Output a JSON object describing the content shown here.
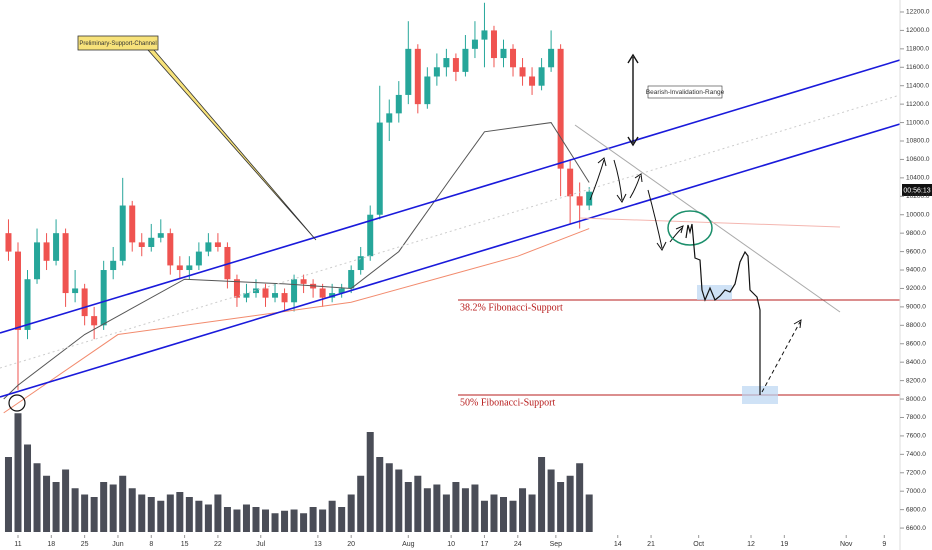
{
  "chart_data": {
    "type": "candlestick",
    "annotations": {
      "channel": "Preliminary-Support-Channel",
      "invalidation": "Bearish-Invalidation-Range",
      "fib382": "38.2% Fibonacci-Support",
      "fib50": "50% Fibonacci-Support",
      "countdown": "00:56:13"
    },
    "x": [
      -2,
      0,
      2,
      4,
      6,
      8,
      10,
      12,
      14,
      16,
      18,
      20,
      22,
      24,
      26,
      28,
      30,
      32,
      34,
      36,
      38,
      40,
      42,
      44,
      46,
      48,
      50,
      52,
      54,
      56,
      58,
      60,
      62,
      64,
      66,
      68,
      70,
      72,
      74,
      76,
      78,
      80,
      82,
      84,
      86,
      88,
      90,
      92,
      94,
      96,
      98,
      100,
      102,
      104,
      106,
      108,
      110,
      112,
      114,
      116,
      118,
      120
    ],
    "open": [
      9800,
      9600,
      8750,
      9300,
      9700,
      9500,
      9800,
      9150,
      9200,
      8900,
      8800,
      9400,
      9500,
      10100,
      9700,
      9650,
      9750,
      9800,
      9450,
      9400,
      9450,
      9600,
      9700,
      9650,
      9300,
      9100,
      9150,
      9200,
      9100,
      9150,
      9050,
      9300,
      9250,
      9200,
      9100,
      9150,
      9200,
      9400,
      9550,
      10000,
      11000,
      11100,
      11300,
      11800,
      11200,
      11500,
      11600,
      11700,
      11550,
      11800,
      11900,
      12000,
      11700,
      11800,
      11600,
      11500,
      11400,
      11600,
      11800,
      10500,
      10200,
      10100
    ],
    "high": [
      9950,
      9700,
      9400,
      9850,
      9800,
      9950,
      9850,
      9400,
      9250,
      9000,
      9500,
      9650,
      10400,
      10150,
      9800,
      9900,
      9950,
      9850,
      9550,
      9550,
      9700,
      9800,
      9800,
      9700,
      9350,
      9250,
      9300,
      9250,
      9250,
      9200,
      9350,
      9350,
      9300,
      9250,
      9250,
      9250,
      9450,
      9650,
      10100,
      11400,
      11250,
      11450,
      12100,
      11850,
      11600,
      11750,
      11800,
      11750,
      11950,
      12100,
      12300,
      12050,
      11900,
      11850,
      11700,
      11600,
      11700,
      12000,
      11850,
      10600,
      10350,
      10300
    ],
    "low": [
      9500,
      8100,
      8650,
      9250,
      9400,
      9450,
      9000,
      9050,
      8800,
      8650,
      8750,
      9300,
      9450,
      9600,
      9550,
      9600,
      9700,
      9350,
      9300,
      9300,
      9400,
      9550,
      9600,
      9200,
      9000,
      9050,
      9100,
      9000,
      9050,
      8950,
      8950,
      9150,
      9100,
      9000,
      9050,
      9100,
      9150,
      9350,
      9500,
      9950,
      10800,
      11000,
      11200,
      11100,
      11150,
      11400,
      11500,
      11450,
      11500,
      11700,
      11600,
      11600,
      11600,
      11500,
      11400,
      11300,
      11350,
      11550,
      10200,
      9900,
      9850,
      10050
    ],
    "close": [
      9600,
      8750,
      9300,
      9700,
      9500,
      9800,
      9150,
      9200,
      8900,
      8800,
      9400,
      9500,
      10100,
      9700,
      9650,
      9750,
      9800,
      9450,
      9400,
      9450,
      9600,
      9700,
      9650,
      9300,
      9100,
      9150,
      9200,
      9100,
      9150,
      9050,
      9300,
      9250,
      9200,
      9100,
      9150,
      9200,
      9400,
      9550,
      10000,
      11000,
      11100,
      11300,
      11800,
      11200,
      11500,
      11600,
      11700,
      11550,
      11800,
      11900,
      12000,
      11700,
      11800,
      11600,
      11500,
      11400,
      11600,
      11800,
      10500,
      10200,
      10100,
      10250
    ],
    "volume": [
      60,
      95,
      70,
      55,
      45,
      40,
      50,
      35,
      30,
      28,
      40,
      38,
      45,
      35,
      30,
      28,
      25,
      30,
      32,
      28,
      25,
      22,
      30,
      20,
      18,
      22,
      20,
      18,
      15,
      17,
      18,
      15,
      20,
      18,
      25,
      20,
      30,
      45,
      80,
      60,
      55,
      50,
      40,
      45,
      35,
      38,
      30,
      40,
      35,
      38,
      25,
      30,
      28,
      25,
      35,
      30,
      60,
      50,
      40,
      45,
      55,
      30
    ],
    "volume_max": 100,
    "series": [
      {
        "color": "#555555",
        "x": [
          -3,
          0,
          14,
          35,
          56,
          70,
          80,
          91,
          98,
          112,
          120
        ],
        "values": [
          8000,
          8150,
          8700,
          9300,
          9250,
          9200,
          9600,
          10400,
          10900,
          11000,
          10350
        ]
      },
      {
        "color": "#f28b6e",
        "x": [
          -3,
          21,
          49,
          70,
          91,
          105,
          120
        ],
        "values": [
          7850,
          8700,
          8900,
          9050,
          9350,
          9550,
          9850
        ]
      }
    ],
    "up_color": "#26a69a",
    "down_color": "#ef5350",
    "xlim": [
      -3.78,
      185.3
    ],
    "ylim": [
      6362,
      12330
    ],
    "xticks": [
      {
        "value": 0,
        "label": "11"
      },
      {
        "value": 7,
        "label": "18"
      },
      {
        "value": 14,
        "label": "25"
      },
      {
        "value": 21,
        "label": "Jun"
      },
      {
        "value": 28,
        "label": "8"
      },
      {
        "value": 35,
        "label": "15"
      },
      {
        "value": 42,
        "label": "22"
      },
      {
        "value": 51,
        "label": "Jul"
      },
      {
        "value": 63,
        "label": "13"
      },
      {
        "value": 70,
        "label": "20"
      },
      {
        "value": 82,
        "label": "Aug"
      },
      {
        "value": 91,
        "label": "10"
      },
      {
        "value": 98,
        "label": "17"
      },
      {
        "value": 105,
        "label": "24"
      },
      {
        "value": 113,
        "label": "Sep"
      },
      {
        "value": 126,
        "label": "14"
      },
      {
        "value": 133,
        "label": "21"
      },
      {
        "value": 143,
        "label": "Oct"
      },
      {
        "value": 154,
        "label": "12"
      },
      {
        "value": 161,
        "label": "19"
      },
      {
        "value": 174,
        "label": "Nov"
      },
      {
        "value": 182,
        "label": "9"
      }
    ],
    "yticks": [
      {
        "value": 12200,
        "label": "12200.0"
      },
      {
        "value": 12000,
        "label": "12000.0"
      },
      {
        "value": 11800,
        "label": "11800.0"
      },
      {
        "value": 11600,
        "label": "11600.0"
      },
      {
        "value": 11400,
        "label": "11400.0"
      },
      {
        "value": 11200,
        "label": "11200.0"
      },
      {
        "value": 11000,
        "label": "11000.0"
      },
      {
        "value": 10800,
        "label": "10800.0"
      },
      {
        "value": 10600,
        "label": "10600.0"
      },
      {
        "value": 10400,
        "label": "10400.0"
      },
      {
        "value": 10200,
        "label": "10200.0"
      },
      {
        "value": 10000,
        "label": "10000.0"
      },
      {
        "value": 9800,
        "label": "9800.0"
      },
      {
        "value": 9600,
        "label": "9600.0"
      },
      {
        "value": 9400,
        "label": "9400.0"
      },
      {
        "value": 9200,
        "label": "9200.0"
      },
      {
        "value": 9000,
        "label": "9000.0"
      },
      {
        "value": 8800,
        "label": "8800.0"
      },
      {
        "value": 8600,
        "label": "8600.0"
      },
      {
        "value": 8400,
        "label": "8400.0"
      },
      {
        "value": 8200,
        "label": "8200.0"
      },
      {
        "value": 8000,
        "label": "8000.0"
      },
      {
        "value": 7800,
        "label": "7800.0"
      },
      {
        "value": 7600,
        "label": "7600.0"
      },
      {
        "value": 7400,
        "label": "7400.0"
      },
      {
        "value": 7200,
        "label": "7200.0"
      },
      {
        "value": 7000,
        "label": "7000.0"
      },
      {
        "value": 6800,
        "label": "6800.0"
      },
      {
        "value": 6600,
        "label": "6600.0"
      }
    ]
  }
}
